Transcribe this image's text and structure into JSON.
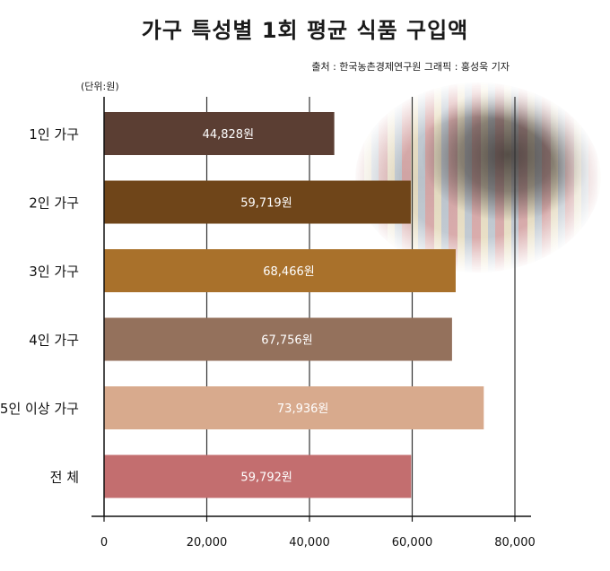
{
  "title": "가구 특성별 1회 평균 식품 구입액",
  "source": "출처 : 한국농촌경제연구원 그래픽 : 홍성욱 기자",
  "unit": "(단위:원)",
  "chart_data": {
    "type": "bar",
    "orientation": "horizontal",
    "categories": [
      "1인 가구",
      "2인 가구",
      "3인 가구",
      "4인 가구",
      "5인 이상 가구",
      "전    체"
    ],
    "values": [
      44828,
      59719,
      68466,
      67756,
      73936,
      59792
    ],
    "value_labels": [
      "44,828원",
      "59,719원",
      "68,466원",
      "67,756원",
      "73,936원",
      "59,792원"
    ],
    "colors": [
      "#5b3e33",
      "#6f4519",
      "#a9712b",
      "#94715c",
      "#d8aa8d",
      "#c36e6f"
    ],
    "xticks": [
      "0",
      "20,000",
      "40,000",
      "60,000",
      "80,000"
    ],
    "xlim": [
      0,
      80000
    ],
    "grid": true
  }
}
